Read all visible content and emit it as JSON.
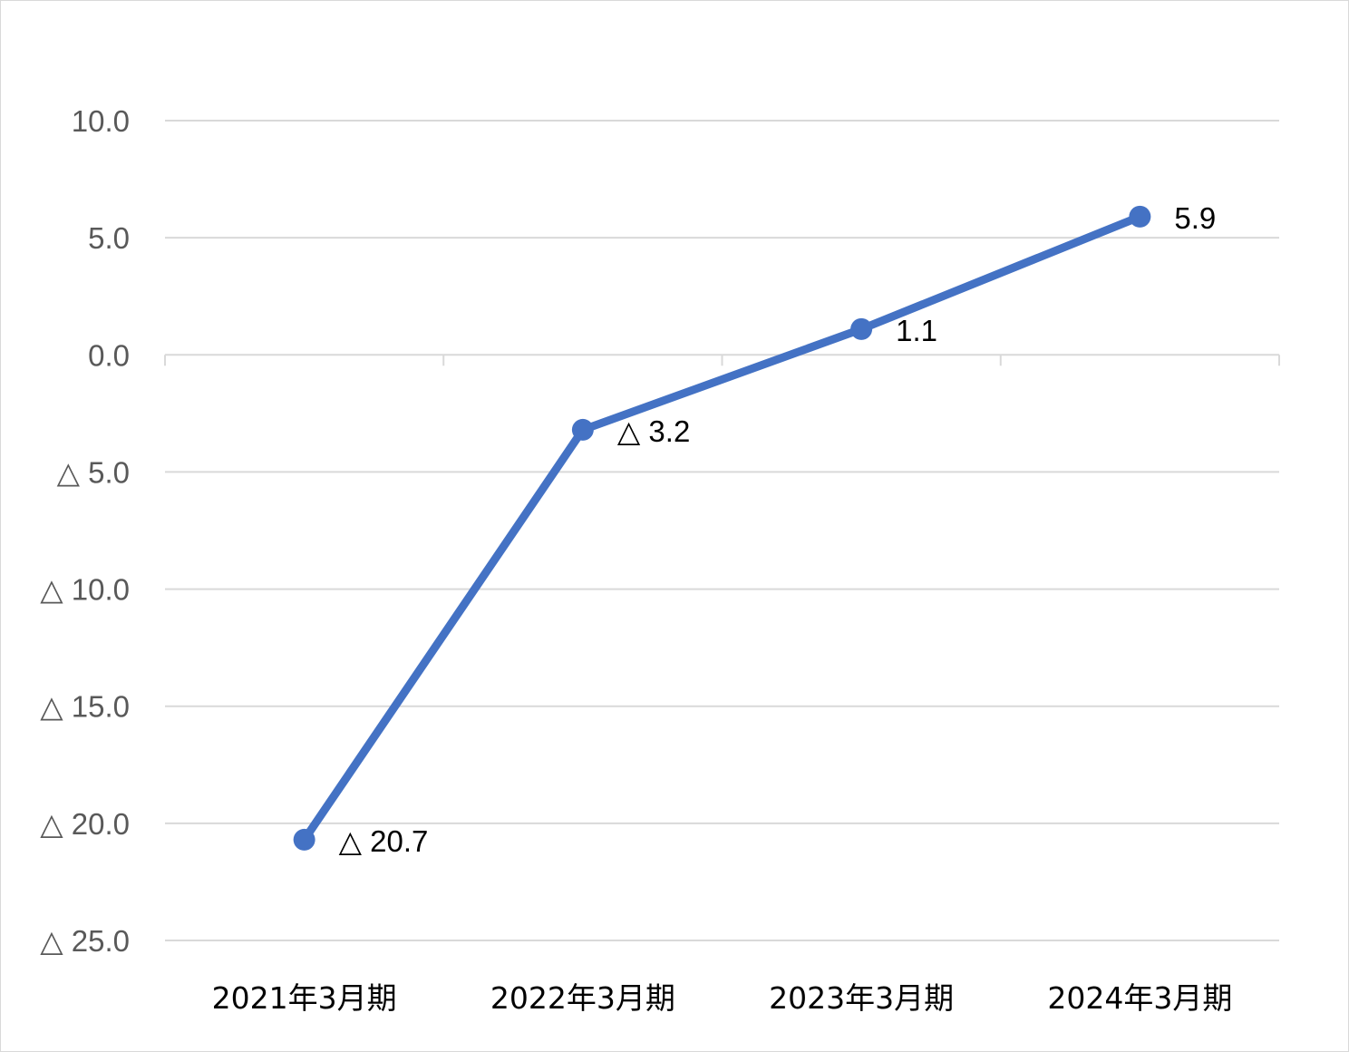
{
  "chart_data": {
    "type": "line",
    "title": "",
    "xlabel": "",
    "ylabel": "",
    "categories": [
      "2021年3月期",
      "2022年3月期",
      "2023年3月期",
      "2024年3月期"
    ],
    "series": [
      {
        "values": [
          -20.7,
          -3.2,
          1.1,
          5.9
        ],
        "data_labels": [
          "△ 20.7",
          "△ 3.2",
          "1.1",
          "5.9"
        ],
        "color": "#4472C4"
      }
    ],
    "ylim": [
      -25,
      10
    ],
    "yticks": [
      10,
      5,
      0,
      -5,
      -10,
      -15,
      -20,
      -25
    ],
    "ytick_labels": [
      "10.0",
      "5.0",
      "0.0",
      "△ 5.0",
      "△ 10.0",
      "△ 15.0",
      "△ 20.0",
      "△ 25.0"
    ],
    "grid": true,
    "legend": "none"
  },
  "colors": {
    "line": "#4472C4",
    "grid": "#d9d9d9",
    "axis": "#d9d9d9",
    "tick_text": "#595959",
    "label_text": "#000000"
  }
}
